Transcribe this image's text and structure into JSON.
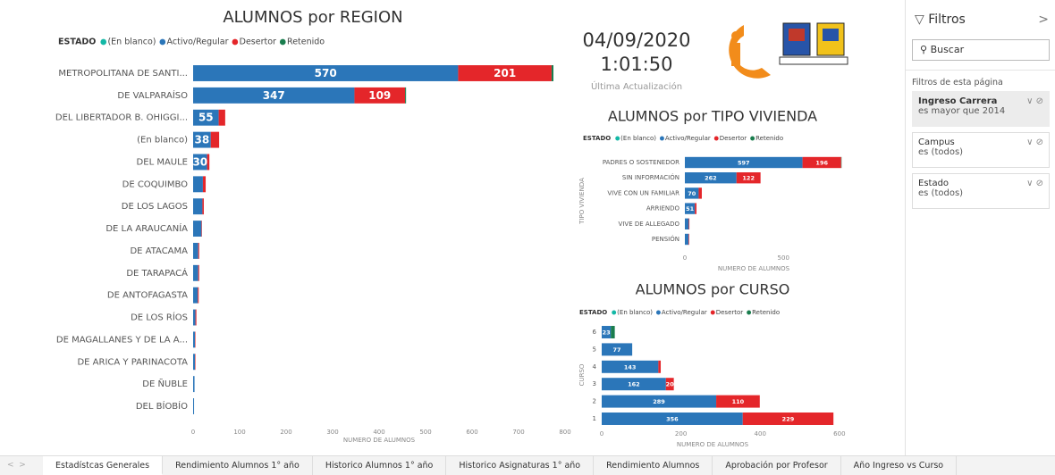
{
  "chart_data": [
    {
      "type": "bar",
      "orientation": "horizontal",
      "stacked": true,
      "title": "ALUMNOS por REGION",
      "legend_title": "ESTADO",
      "xlabel": "NUMERO DE ALUMNOS",
      "categories": [
        "METROPOLITANA DE SANTI...",
        "DE VALPARAÍSO",
        "DEL LIBERTADOR B. OHIGGI...",
        "(En blanco)",
        "DEL MAULE",
        "DE COQUIMBO",
        "DE LOS LAGOS",
        "DE LA ARAUCANÍA",
        "DE ATACAMA",
        "DE TARAPACÁ",
        "DE ANTOFAGASTA",
        "DE LOS RÍOS",
        "DE MAGALLANES Y DE LA A...",
        "DE ARICA Y PARINACOTA",
        "DE ÑUBLE",
        "DEL BÍOBÍO"
      ],
      "series": [
        {
          "name": "(En blanco)",
          "color": "#14b8a6",
          "values": [
            0,
            0,
            0,
            0,
            0,
            0,
            0,
            0,
            0,
            0,
            0,
            0,
            0,
            0,
            0,
            0
          ]
        },
        {
          "name": "Activo/Regular",
          "color": "#2b76b9",
          "values": [
            570,
            347,
            55,
            38,
            30,
            21,
            20,
            18,
            11,
            11,
            10,
            5,
            4,
            4,
            3,
            2
          ]
        },
        {
          "name": "Desertor",
          "color": "#e4262a",
          "values": [
            201,
            109,
            14,
            18,
            5,
            6,
            3,
            1,
            2,
            2,
            2,
            2,
            1,
            1,
            0,
            0
          ]
        },
        {
          "name": "Retenido",
          "color": "#1a7d4e",
          "values": [
            4,
            2,
            0,
            0,
            0,
            0,
            0,
            0,
            0,
            0,
            0,
            0,
            0,
            0,
            0,
            0
          ]
        }
      ],
      "xlim": [
        0,
        800
      ],
      "xticks": [
        0,
        100,
        200,
        300,
        400,
        500,
        600,
        700,
        800
      ],
      "grid": false
    },
    {
      "type": "bar",
      "orientation": "horizontal",
      "stacked": true,
      "title": "ALUMNOS por TIPO VIVIENDA",
      "legend_title": "ESTADO",
      "xlabel": "NUMERO DE ALUMNOS",
      "ylabel": "TIPO VIVIENDA",
      "categories": [
        "PADRES O SOSTENEDOR",
        "SIN INFORMACIÓN",
        "VIVE CON UN FAMILIAR",
        "ARRIENDO",
        "VIVE DE ALLEGADO",
        "PENSIÓN"
      ],
      "series": [
        {
          "name": "(En blanco)",
          "color": "#14b8a6",
          "values": [
            0,
            0,
            0,
            0,
            0,
            0
          ]
        },
        {
          "name": "Activo/Regular",
          "color": "#2b76b9",
          "values": [
            597,
            262,
            70,
            51,
            20,
            19
          ]
        },
        {
          "name": "Desertor",
          "color": "#e4262a",
          "values": [
            196,
            122,
            16,
            8,
            3,
            3
          ]
        },
        {
          "name": "Retenido",
          "color": "#1a7d4e",
          "values": [
            2,
            0,
            0,
            0,
            0,
            0
          ]
        }
      ],
      "xlim": [
        0,
        880
      ],
      "xticks": [
        0,
        500
      ],
      "grid": false
    },
    {
      "type": "bar",
      "orientation": "horizontal",
      "stacked": true,
      "title": "ALUMNOS por CURSO",
      "legend_title": "ESTADO",
      "xlabel": "NUMERO DE ALUMNOS",
      "ylabel": "CURSO",
      "categories": [
        "6",
        "5",
        "4",
        "3",
        "2",
        "1"
      ],
      "series": [
        {
          "name": "(En blanco)",
          "color": "#14b8a6",
          "values": [
            0,
            0,
            0,
            0,
            0,
            0
          ]
        },
        {
          "name": "Activo/Regular",
          "color": "#2b76b9",
          "values": [
            23,
            77,
            143,
            162,
            289,
            356
          ]
        },
        {
          "name": "Desertor",
          "color": "#e4262a",
          "values": [
            0,
            0,
            6,
            20,
            110,
            229
          ]
        },
        {
          "name": "Retenido",
          "color": "#1a7d4e",
          "values": [
            10,
            0,
            0,
            0,
            0,
            0
          ]
        }
      ],
      "xlim": [
        0,
        650
      ],
      "xticks": [
        0,
        200,
        400,
        600
      ],
      "grid": false
    }
  ],
  "header": {
    "date": "04/09/2020",
    "time": "1:01:50",
    "updated": "Última Actualización"
  },
  "filters": {
    "title": "Filtros",
    "search": "Buscar",
    "section": "Filtros de esta página",
    "cards": [
      {
        "field": "Ingreso Carrera",
        "condition": "es mayor que 2014"
      },
      {
        "field": "Campus",
        "condition": "es (todos)"
      },
      {
        "field": "Estado",
        "condition": "es (todos)"
      }
    ]
  },
  "tabs": [
    "Estadístcas Generales",
    "Rendimiento Alumnos 1° año",
    "Historico Alumnos 1° año",
    "Historico Asignaturas 1° año",
    "Rendimiento Alumnos",
    "Aprobación por Profesor",
    "Año Ingreso vs Curso"
  ]
}
